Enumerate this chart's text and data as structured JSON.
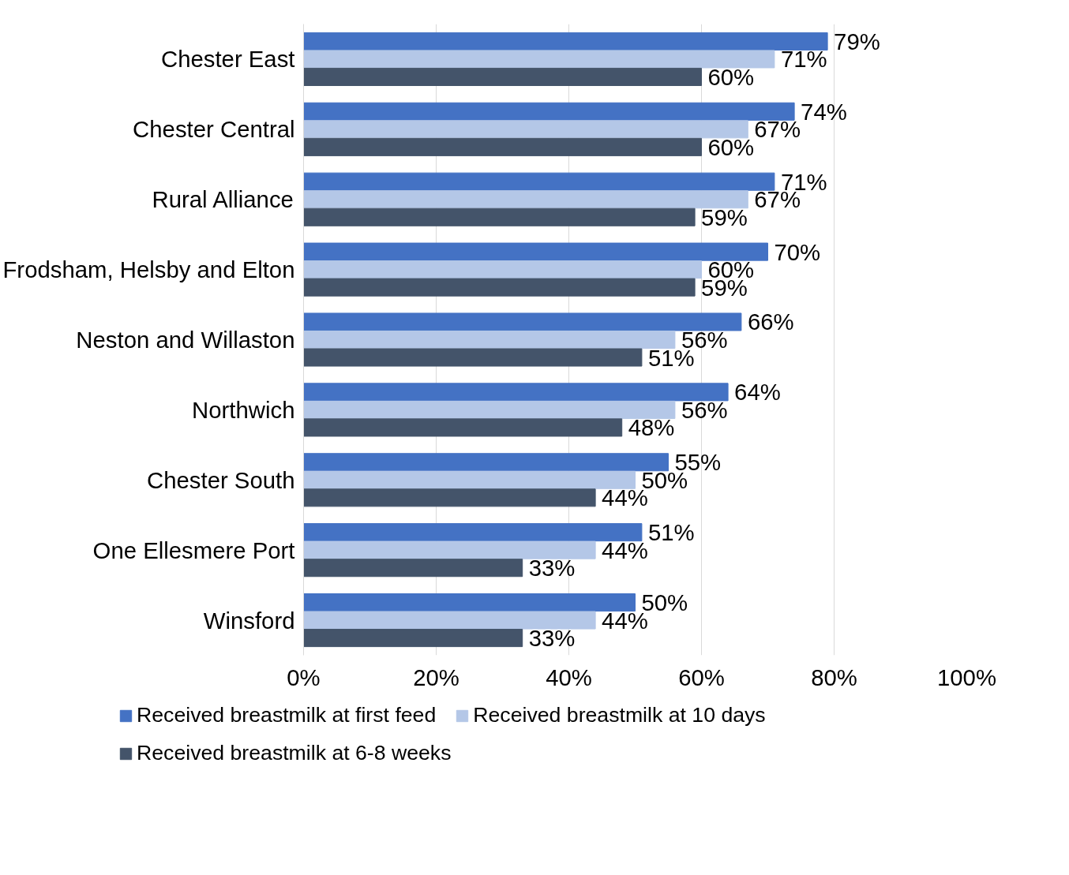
{
  "chart_data": {
    "type": "bar",
    "orientation": "horizontal",
    "categories": [
      "Chester East",
      "Chester Central",
      "Rural Alliance",
      "Frodsham, Helsby and Elton",
      "Neston and Willaston",
      "Northwich",
      "Chester South",
      "One Ellesmere Port",
      "Winsford"
    ],
    "series": [
      {
        "name": "Received breastmilk at first feed",
        "color": "#4472c4",
        "values": [
          79,
          74,
          71,
          70,
          66,
          64,
          55,
          51,
          50
        ],
        "value_labels": [
          "79%",
          "74%",
          "71%",
          "70%",
          "66%",
          "64%",
          "55%",
          "51%",
          "50%"
        ]
      },
      {
        "name": "Received breastmilk at 10 days",
        "color": "#b4c7e7",
        "values": [
          71,
          67,
          67,
          60,
          56,
          56,
          50,
          44,
          44
        ],
        "value_labels": [
          "71%",
          "67%",
          "67%",
          "60%",
          "56%",
          "56%",
          "50%",
          "44%",
          "44%"
        ]
      },
      {
        "name": "Received breastmilk at 6-8 weeks",
        "color": "#44546a",
        "values": [
          60,
          60,
          59,
          59,
          51,
          48,
          44,
          33,
          33
        ],
        "value_labels": [
          "60%",
          "60%",
          "59%",
          "59%",
          "51%",
          "48%",
          "44%",
          "33%",
          "33%"
        ]
      }
    ],
    "xlim": [
      0,
      100
    ],
    "xticks": [
      {
        "value": 0,
        "label": "0%"
      },
      {
        "value": 20,
        "label": "20%"
      },
      {
        "value": 40,
        "label": "40%"
      },
      {
        "value": 60,
        "label": "60%"
      },
      {
        "value": 80,
        "label": "80%"
      },
      {
        "value": 100,
        "label": "100%"
      }
    ],
    "grid": "x",
    "legend": "bottom"
  }
}
